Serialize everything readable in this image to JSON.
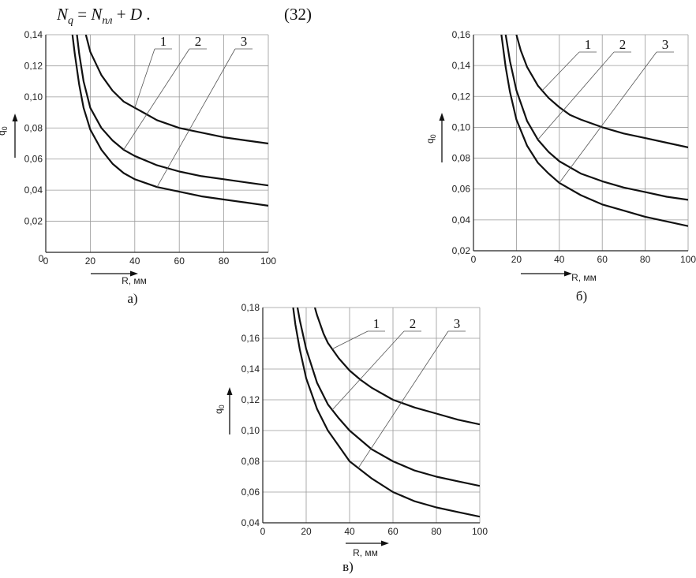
{
  "formula": {
    "lhs": "N",
    "lhs_sub": "q",
    "eq": " = ",
    "term1": "N",
    "term1_sub": "пл",
    "plus": " + ",
    "term2": "D",
    "dot": " .",
    "number": "(32)"
  },
  "chart_data": [
    {
      "type": "line",
      "panel_label": "а)",
      "xlabel": "R, мм",
      "ylabel": "q",
      "ylabel_sub": "0",
      "xlim": [
        0,
        100
      ],
      "ylim": [
        0,
        0.14
      ],
      "xticks": [
        0,
        20,
        40,
        60,
        80,
        100
      ],
      "xtick_labels": [
        "0",
        "20",
        "40",
        "60",
        "80",
        "100"
      ],
      "yticks": [
        0.02,
        0.04,
        0.06,
        0.08,
        0.1,
        0.12,
        0.14
      ],
      "ytick_labels": [
        "0,02",
        "0,04",
        "0,06",
        "0,08",
        "0,10",
        "0,12",
        "0,14"
      ],
      "origin_label": "0",
      "grid": true,
      "series": [
        {
          "name": "1",
          "x": [
            18,
            20,
            25,
            30,
            35,
            40,
            45,
            50,
            60,
            70,
            80,
            90,
            100
          ],
          "y": [
            0.14,
            0.129,
            0.114,
            0.104,
            0.097,
            0.093,
            0.089,
            0.085,
            0.08,
            0.077,
            0.074,
            0.072,
            0.07
          ]
        },
        {
          "name": "2",
          "x": [
            14,
            15,
            17,
            20,
            25,
            30,
            35,
            40,
            50,
            60,
            70,
            80,
            90,
            100
          ],
          "y": [
            0.14,
            0.128,
            0.11,
            0.093,
            0.08,
            0.072,
            0.066,
            0.062,
            0.056,
            0.052,
            0.049,
            0.047,
            0.045,
            0.043
          ]
        },
        {
          "name": "3",
          "x": [
            12,
            13,
            15,
            17,
            20,
            25,
            30,
            35,
            40,
            50,
            60,
            70,
            80,
            90,
            100
          ],
          "y": [
            0.14,
            0.128,
            0.108,
            0.093,
            0.079,
            0.066,
            0.057,
            0.051,
            0.047,
            0.042,
            0.039,
            0.036,
            0.034,
            0.032,
            0.03
          ]
        }
      ],
      "leader_labels": [
        "1",
        "2",
        "3"
      ]
    },
    {
      "type": "line",
      "panel_label": "б)",
      "xlabel": "R, мм",
      "ylabel": "q",
      "ylabel_sub": "0",
      "xlim": [
        0,
        100
      ],
      "ylim": [
        0.02,
        0.16
      ],
      "xticks": [
        0,
        20,
        40,
        60,
        80,
        100
      ],
      "xtick_labels": [
        "0",
        "20",
        "40",
        "60",
        "80",
        "100"
      ],
      "yticks": [
        0.02,
        0.04,
        0.06,
        0.08,
        0.1,
        0.12,
        0.14,
        0.16
      ],
      "ytick_labels": [
        "0,02",
        "0,04",
        "0,06",
        "0,08",
        "0,10",
        "0,12",
        "0,14",
        "0,16"
      ],
      "grid": true,
      "series": [
        {
          "name": "1",
          "x": [
            20,
            22,
            25,
            30,
            35,
            40,
            45,
            50,
            60,
            70,
            80,
            90,
            100
          ],
          "y": [
            0.16,
            0.15,
            0.139,
            0.127,
            0.119,
            0.113,
            0.108,
            0.105,
            0.1,
            0.096,
            0.093,
            0.09,
            0.087
          ]
        },
        {
          "name": "2",
          "x": [
            15,
            17,
            20,
            25,
            30,
            35,
            40,
            50,
            60,
            70,
            80,
            90,
            100
          ],
          "y": [
            0.16,
            0.143,
            0.124,
            0.104,
            0.092,
            0.084,
            0.078,
            0.07,
            0.065,
            0.061,
            0.058,
            0.055,
            0.053
          ]
        },
        {
          "name": "3",
          "x": [
            13,
            15,
            17,
            20,
            25,
            30,
            35,
            40,
            50,
            60,
            70,
            80,
            90,
            100
          ],
          "y": [
            0.16,
            0.139,
            0.123,
            0.105,
            0.088,
            0.077,
            0.07,
            0.064,
            0.056,
            0.05,
            0.046,
            0.042,
            0.039,
            0.036
          ]
        }
      ],
      "leader_labels": [
        "1",
        "2",
        "3"
      ]
    },
    {
      "type": "line",
      "panel_label": "в)",
      "xlabel": "R, мм",
      "ylabel": "q",
      "ylabel_sub": "0",
      "xlim": [
        0,
        100
      ],
      "ylim": [
        0.04,
        0.18
      ],
      "xticks": [
        0,
        20,
        40,
        60,
        80,
        100
      ],
      "xtick_labels": [
        "0",
        "20",
        "40",
        "60",
        "80",
        "100"
      ],
      "yticks": [
        0.04,
        0.06,
        0.08,
        0.1,
        0.12,
        0.14,
        0.16,
        0.18
      ],
      "ytick_labels": [
        "0,04",
        "0,06",
        "0,08",
        "0,10",
        "0,12",
        "0,14",
        "0,16",
        "0,18"
      ],
      "grid": true,
      "series": [
        {
          "name": "1",
          "x": [
            24,
            25,
            28,
            30,
            35,
            40,
            45,
            50,
            60,
            70,
            80,
            90,
            100
          ],
          "y": [
            0.18,
            0.175,
            0.163,
            0.157,
            0.147,
            0.139,
            0.133,
            0.128,
            0.12,
            0.115,
            0.111,
            0.107,
            0.104
          ]
        },
        {
          "name": "2",
          "x": [
            16,
            17,
            20,
            25,
            30,
            35,
            40,
            50,
            60,
            70,
            80,
            90,
            100
          ],
          "y": [
            0.18,
            0.172,
            0.153,
            0.131,
            0.117,
            0.108,
            0.1,
            0.088,
            0.08,
            0.074,
            0.07,
            0.067,
            0.064
          ]
        },
        {
          "name": "3",
          "x": [
            14,
            15,
            17,
            20,
            25,
            30,
            35,
            40,
            50,
            60,
            70,
            80,
            90,
            100
          ],
          "y": [
            0.18,
            0.169,
            0.153,
            0.134,
            0.114,
            0.1,
            0.09,
            0.08,
            0.069,
            0.06,
            0.054,
            0.05,
            0.047,
            0.044
          ]
        }
      ],
      "leader_labels": [
        "1",
        "2",
        "3"
      ]
    }
  ]
}
